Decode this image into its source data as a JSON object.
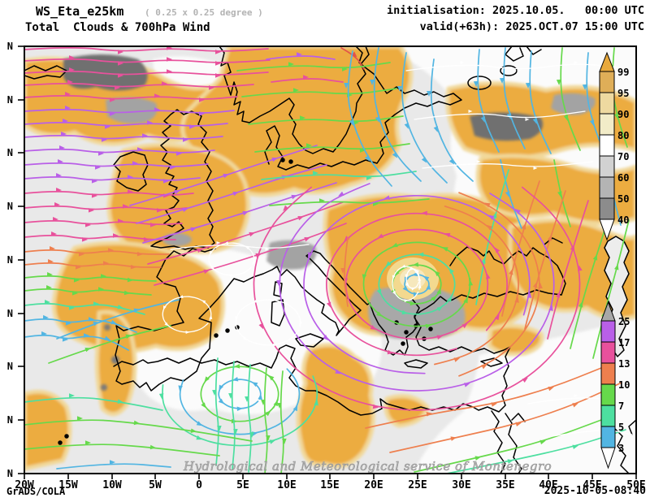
{
  "header": {
    "model": "WS_Eta_e25km",
    "resolution": "( 0.25 x 0.25 degree )",
    "product": "Total  Clouds & 700hPa Wind",
    "init": "initialisation: 2025.10.05.   00:00 UTC",
    "valid": "valid(+63h): 2025.OCT.07 15:00 UTC"
  },
  "axes": {
    "x_labels": [
      "20W",
      "15W",
      "10W",
      "5W",
      "0",
      "5E",
      "10E",
      "15E",
      "20E",
      "25E",
      "30E",
      "35E",
      "40E",
      "45E",
      "50E"
    ],
    "y_labels": [
      "N",
      "N",
      "N",
      "N",
      "N",
      "N",
      "N",
      "N",
      "N"
    ]
  },
  "legend": {
    "cloud": {
      "values": [
        "99",
        "95",
        "90",
        "80",
        "70",
        "60",
        "50",
        "40"
      ],
      "colors": [
        "#dfae58",
        "#eed9a0",
        "#f2ecc8",
        "#ffffff",
        "#d2d2d2",
        "#b4b4b4",
        "#8c8c8c"
      ],
      "top_arrow": "#e8a93c",
      "bottom_arrow": "#ffffff"
    },
    "wind": {
      "values": [
        "25",
        "17",
        "13",
        "10",
        "7",
        "5",
        "3"
      ],
      "colors": [
        "#b95fe8",
        "#e8519c",
        "#ee7f4e",
        "#66d94b",
        "#4ddfa0",
        "#52b5e2"
      ],
      "top_arrow": "#a8a8a8",
      "bottom_arrow": "#ffffff"
    }
  },
  "map_colors": {
    "background": "#e9e9e9",
    "cloud_dense": "#ecac3f",
    "cloud_fringe": "#f1d89a",
    "gray_patch_dark": "#6f6f6f",
    "gray_patch_mid": "#a3a3a3",
    "coastline": "#000000"
  },
  "watermark": "Hydrological and Meteorological service of Montenegro",
  "footer": {
    "left": "GrADS/COLA",
    "right": "2025-10-05-08:40"
  }
}
